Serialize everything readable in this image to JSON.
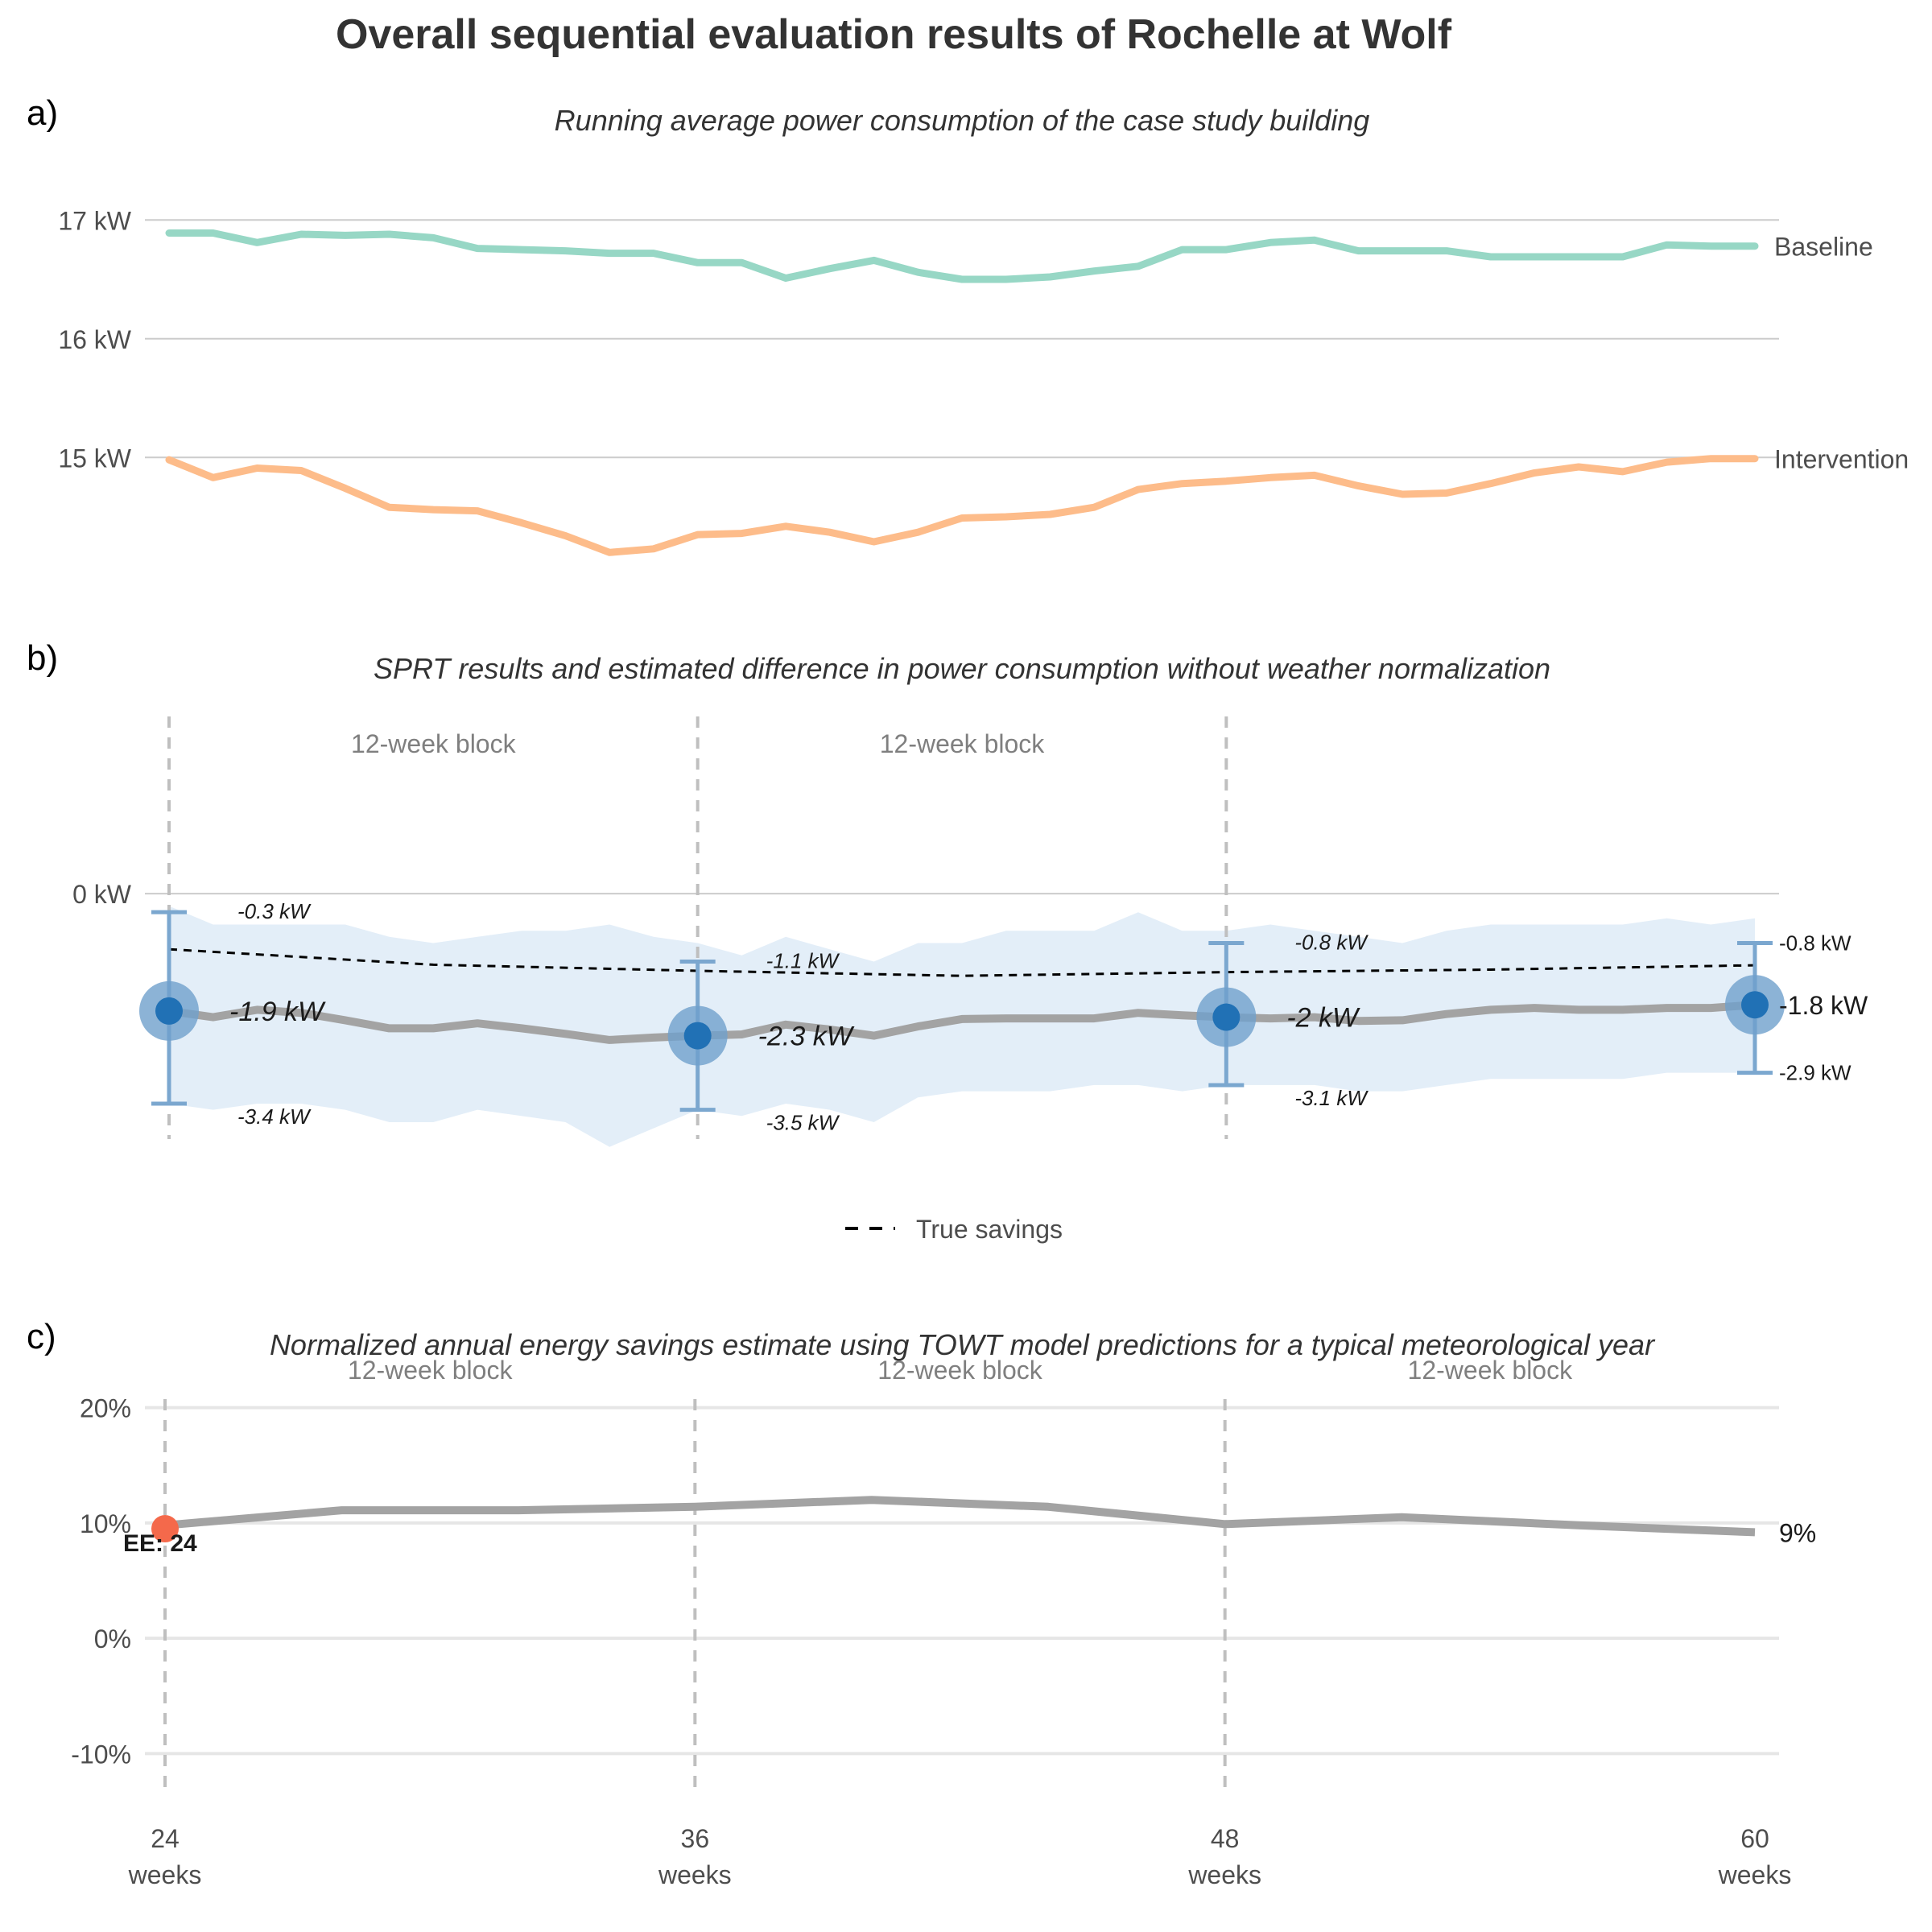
{
  "title": "Overall sequential evaluation results of Rochelle at Wolf",
  "panels": {
    "a_label": "a)",
    "b_label": "b)",
    "c_label": "c)",
    "a_subtitle": "Running average power consumption of the case study building",
    "b_subtitle": "SPRT results and estimated difference in power consumption without weather normalization",
    "c_subtitle": "Normalized annual energy savings estimate using TOWT model predictions for a typical meteorological year"
  },
  "block_label": "12-week block",
  "legend": {
    "true_savings": "True savings"
  },
  "colors": {
    "baseline": "#97d7c5",
    "intervention": "#fdbc8a",
    "estimate_line": "#a3a3a3",
    "band": "#e3eef8",
    "sprt_point": "#2171b5",
    "sprt_halo": "#6fa0cc",
    "errorbar": "#7ba7cf",
    "early_eval_point": "#f4694b",
    "grid": "#cccccc",
    "grid_c": "#e6e6e6",
    "vline": "#bfbfbf"
  },
  "chart_data": [
    {
      "panel": "a",
      "type": "line",
      "yticks": [
        "17 kW",
        "16 kW",
        "15 kW"
      ],
      "ytick_values": [
        17,
        16,
        15
      ],
      "ylim": [
        13.7,
        17.7
      ],
      "xlim": [
        24,
        60
      ],
      "series": [
        {
          "name": "Baseline",
          "x": [
            24,
            25,
            26,
            27,
            28,
            29,
            30,
            31,
            32,
            33,
            34,
            35,
            36,
            37,
            38,
            39,
            40,
            41,
            42,
            43,
            44,
            45,
            46,
            47,
            48,
            49,
            50,
            51,
            52,
            53,
            54,
            55,
            56,
            57,
            58,
            59,
            60
          ],
          "y": [
            16.89,
            16.89,
            16.81,
            16.88,
            16.87,
            16.88,
            16.85,
            16.76,
            16.75,
            16.74,
            16.72,
            16.72,
            16.64,
            16.64,
            16.51,
            16.59,
            16.66,
            16.56,
            16.5,
            16.5,
            16.52,
            16.57,
            16.61,
            16.75,
            16.75,
            16.81,
            16.83,
            16.74,
            16.74,
            16.74,
            16.69,
            16.69,
            16.69,
            16.69,
            16.79,
            16.78,
            16.78
          ]
        },
        {
          "name": "Intervention",
          "x": [
            24,
            25,
            26,
            27,
            28,
            29,
            30,
            31,
            32,
            33,
            34,
            35,
            36,
            37,
            38,
            39,
            40,
            41,
            42,
            43,
            44,
            45,
            46,
            47,
            48,
            49,
            50,
            51,
            52,
            53,
            54,
            55,
            56,
            57,
            58,
            59,
            60
          ],
          "y": [
            14.98,
            14.83,
            14.91,
            14.89,
            14.74,
            14.58,
            14.56,
            14.55,
            14.45,
            14.34,
            14.2,
            14.23,
            14.35,
            14.36,
            14.42,
            14.37,
            14.29,
            14.37,
            14.49,
            14.5,
            14.52,
            14.58,
            14.73,
            14.78,
            14.8,
            14.83,
            14.85,
            14.76,
            14.69,
            14.7,
            14.78,
            14.87,
            14.92,
            14.88,
            14.96,
            14.99,
            14.99
          ]
        }
      ]
    },
    {
      "panel": "b",
      "type": "line",
      "yticks": [
        "0 kW"
      ],
      "ytick_values": [
        0
      ],
      "ylim": [
        -4.3,
        3.0
      ],
      "xlim": [
        24,
        60
      ],
      "estimate": {
        "x": [
          24,
          25,
          26,
          27,
          28,
          29,
          30,
          31,
          32,
          33,
          34,
          35,
          36,
          37,
          38,
          39,
          40,
          41,
          42,
          43,
          44,
          45,
          46,
          47,
          48,
          49,
          50,
          51,
          52,
          53,
          54,
          55,
          56,
          57,
          58,
          59,
          60
        ],
        "y": [
          -1.9,
          -2.0,
          -1.88,
          -1.93,
          -2.05,
          -2.18,
          -2.18,
          -2.1,
          -2.18,
          -2.27,
          -2.37,
          -2.33,
          -2.3,
          -2.28,
          -2.12,
          -2.2,
          -2.3,
          -2.15,
          -2.03,
          -2.02,
          -2.02,
          -2.02,
          -1.93,
          -1.97,
          -2.0,
          -2.02,
          -2.0,
          -2.06,
          -2.05,
          -1.95,
          -1.88,
          -1.85,
          -1.88,
          -1.88,
          -1.85,
          -1.85,
          -1.8
        ]
      },
      "band": {
        "x": [
          24,
          25,
          26,
          27,
          28,
          29,
          30,
          31,
          32,
          33,
          34,
          35,
          36,
          37,
          38,
          39,
          40,
          41,
          42,
          43,
          44,
          45,
          46,
          47,
          48,
          49,
          50,
          51,
          52,
          53,
          54,
          55,
          56,
          57,
          58,
          59,
          60
        ],
        "upper": [
          -0.2,
          -0.5,
          -0.5,
          -0.5,
          -0.5,
          -0.7,
          -0.8,
          -0.7,
          -0.6,
          -0.6,
          -0.5,
          -0.7,
          -0.8,
          -1.0,
          -0.7,
          -0.9,
          -1.1,
          -0.8,
          -0.8,
          -0.6,
          -0.6,
          -0.6,
          -0.3,
          -0.6,
          -0.6,
          -0.5,
          -0.6,
          -0.7,
          -0.8,
          -0.6,
          -0.5,
          -0.5,
          -0.5,
          -0.5,
          -0.4,
          -0.5,
          -0.4
        ],
        "lower": [
          -3.4,
          -3.5,
          -3.4,
          -3.4,
          -3.5,
          -3.7,
          -3.7,
          -3.5,
          -3.6,
          -3.7,
          -4.1,
          -3.8,
          -3.5,
          -3.6,
          -3.4,
          -3.5,
          -3.7,
          -3.3,
          -3.2,
          -3.2,
          -3.2,
          -3.1,
          -3.1,
          -3.2,
          -3.1,
          -3.1,
          -3.1,
          -3.2,
          -3.2,
          -3.1,
          -3.0,
          -3.0,
          -3.0,
          -3.0,
          -2.9,
          -2.9,
          -2.9
        ]
      },
      "true_savings": {
        "x": [
          24,
          30,
          36,
          42,
          48,
          54,
          60
        ],
        "y": [
          -0.9,
          -1.15,
          -1.25,
          -1.33,
          -1.27,
          -1.23,
          -1.16
        ]
      },
      "sprt_points": [
        {
          "x": 24,
          "y": -1.9,
          "lo": -3.4,
          "hi": -0.3,
          "label": "-1.9 kW",
          "lo_label": "-3.4 kW",
          "hi_label": "-0.3 kW"
        },
        {
          "x": 36,
          "y": -2.3,
          "lo": -3.5,
          "hi": -1.1,
          "label": "-2.3 kW",
          "lo_label": "-3.5 kW",
          "hi_label": "-1.1 kW"
        },
        {
          "x": 48,
          "y": -2.0,
          "lo": -3.1,
          "hi": -0.8,
          "label": "-2 kW",
          "lo_label": "-3.1 kW",
          "hi_label": "-0.8 kW"
        },
        {
          "x": 60,
          "y": -1.8,
          "lo": -2.9,
          "hi": -0.8,
          "label": "-1.8 kW",
          "lo_label": "-2.9 kW",
          "hi_label": "-0.8 kW"
        }
      ]
    },
    {
      "panel": "c",
      "type": "line",
      "yticks": [
        "20%",
        "10%",
        "0%",
        "-10%"
      ],
      "ytick_values": [
        20,
        10,
        0,
        -10
      ],
      "ylim": [
        -15,
        22
      ],
      "xlim": [
        24,
        60
      ],
      "xticks": [
        24,
        36,
        48,
        60
      ],
      "xtick_labels": [
        {
          "value": "24",
          "unit": "weeks"
        },
        {
          "value": "36",
          "unit": "weeks"
        },
        {
          "value": "48",
          "unit": "weeks"
        },
        {
          "value": "60",
          "unit": "weeks"
        }
      ],
      "series": {
        "x": [
          24,
          28,
          32,
          36,
          40,
          44,
          48,
          52,
          56,
          60
        ],
        "y": [
          9.8,
          11.1,
          11.1,
          11.4,
          12.0,
          11.4,
          9.9,
          10.5,
          9.8,
          9.2
        ]
      },
      "end_label": "9%",
      "early_eval": {
        "x": 24,
        "y": 9.5,
        "label": "EE: 24"
      }
    }
  ]
}
